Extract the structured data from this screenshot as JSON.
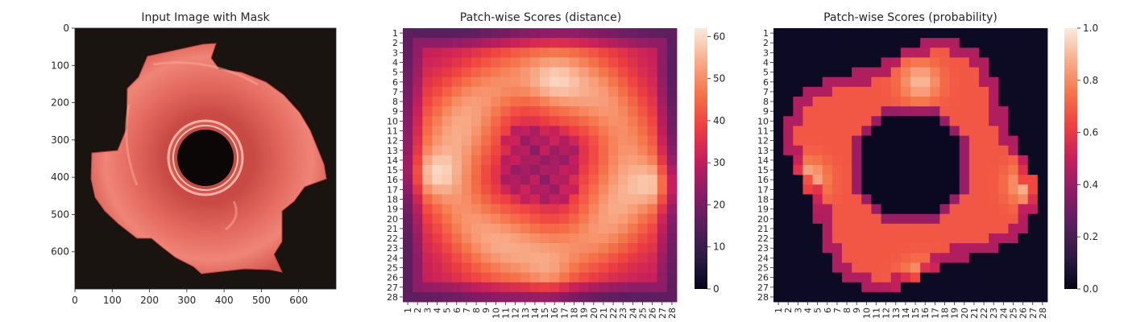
{
  "panels": {
    "image": {
      "title": "Input Image with Mask",
      "x_ticks": [
        "0",
        "100",
        "200",
        "300",
        "400",
        "500",
        "600"
      ],
      "y_ticks": [
        "0",
        "100",
        "200",
        "300",
        "400",
        "500",
        "600"
      ]
    },
    "distance": {
      "title": "Patch-wise Scores (distance)",
      "colorbar_ticks": [
        "0",
        "10",
        "20",
        "30",
        "40",
        "50",
        "60"
      ]
    },
    "probability": {
      "title": "Patch-wise Scores (probability)",
      "colorbar_ticks": [
        "0.0",
        "0.2",
        "0.4",
        "0.6",
        "0.8",
        "1.0"
      ]
    }
  },
  "chart_data": [
    {
      "type": "image",
      "title": "Input Image with Mask",
      "xlim": [
        0,
        700
      ],
      "ylim": [
        700,
        0
      ],
      "x_ticks": [
        0,
        100,
        200,
        300,
        400,
        500,
        600
      ],
      "y_ticks": [
        0,
        100,
        200,
        300,
        400,
        500,
        600
      ],
      "colors": {
        "background": "#1a1411",
        "part": "#e05a52",
        "part_highlight": "#f29a8e",
        "hole": "#0a0706"
      }
    },
    {
      "type": "heatmap",
      "title": "Patch-wise Scores (distance)",
      "rows": 28,
      "cols": 28,
      "x_labels": [
        "1",
        "2",
        "3",
        "4",
        "5",
        "6",
        "7",
        "8",
        "9",
        "10",
        "11",
        "12",
        "13",
        "14",
        "15",
        "16",
        "17",
        "18",
        "19",
        "20",
        "21",
        "22",
        "23",
        "24",
        "25",
        "26",
        "27",
        "28"
      ],
      "y_labels": [
        "1",
        "2",
        "3",
        "4",
        "5",
        "6",
        "7",
        "8",
        "9",
        "10",
        "11",
        "12",
        "13",
        "14",
        "15",
        "16",
        "17",
        "18",
        "19",
        "20",
        "21",
        "22",
        "23",
        "24",
        "25",
        "26",
        "27",
        "28"
      ],
      "colorbar": {
        "min": 0,
        "max": 62,
        "ticks": [
          0,
          10,
          20,
          30,
          40,
          50,
          60
        ]
      },
      "pattern": "low at border (~22-32), high ring (~48-58), hot spots near rows 14-17 cols 2-5 and 25-27 (~60), low centre (~28-33)"
    },
    {
      "type": "heatmap",
      "title": "Patch-wise Scores (probability)",
      "rows": 28,
      "cols": 28,
      "x_labels": [
        "1",
        "2",
        "3",
        "4",
        "5",
        "6",
        "7",
        "8",
        "9",
        "10",
        "11",
        "12",
        "13",
        "14",
        "15",
        "16",
        "17",
        "18",
        "19",
        "20",
        "21",
        "22",
        "23",
        "24",
        "25",
        "26",
        "27",
        "28"
      ],
      "y_labels": [
        "1",
        "2",
        "3",
        "4",
        "5",
        "6",
        "7",
        "8",
        "9",
        "10",
        "11",
        "12",
        "13",
        "14",
        "15",
        "16",
        "17",
        "18",
        "19",
        "20",
        "21",
        "22",
        "23",
        "24",
        "25",
        "26",
        "27",
        "28"
      ],
      "colorbar": {
        "min": 0.0,
        "max": 1.0,
        "ticks": [
          0.0,
          0.2,
          0.4,
          0.6,
          0.8,
          1.0
        ]
      },
      "pattern": "~0.0 outside part and inside central hole (rows 11-19, cols 11-18), ~0.65-0.75 on the part ring, hot spots ~0.9 near rows 14-17 cols 2-5 and 25-27, and rows 4-6 cols 13-16"
    }
  ]
}
